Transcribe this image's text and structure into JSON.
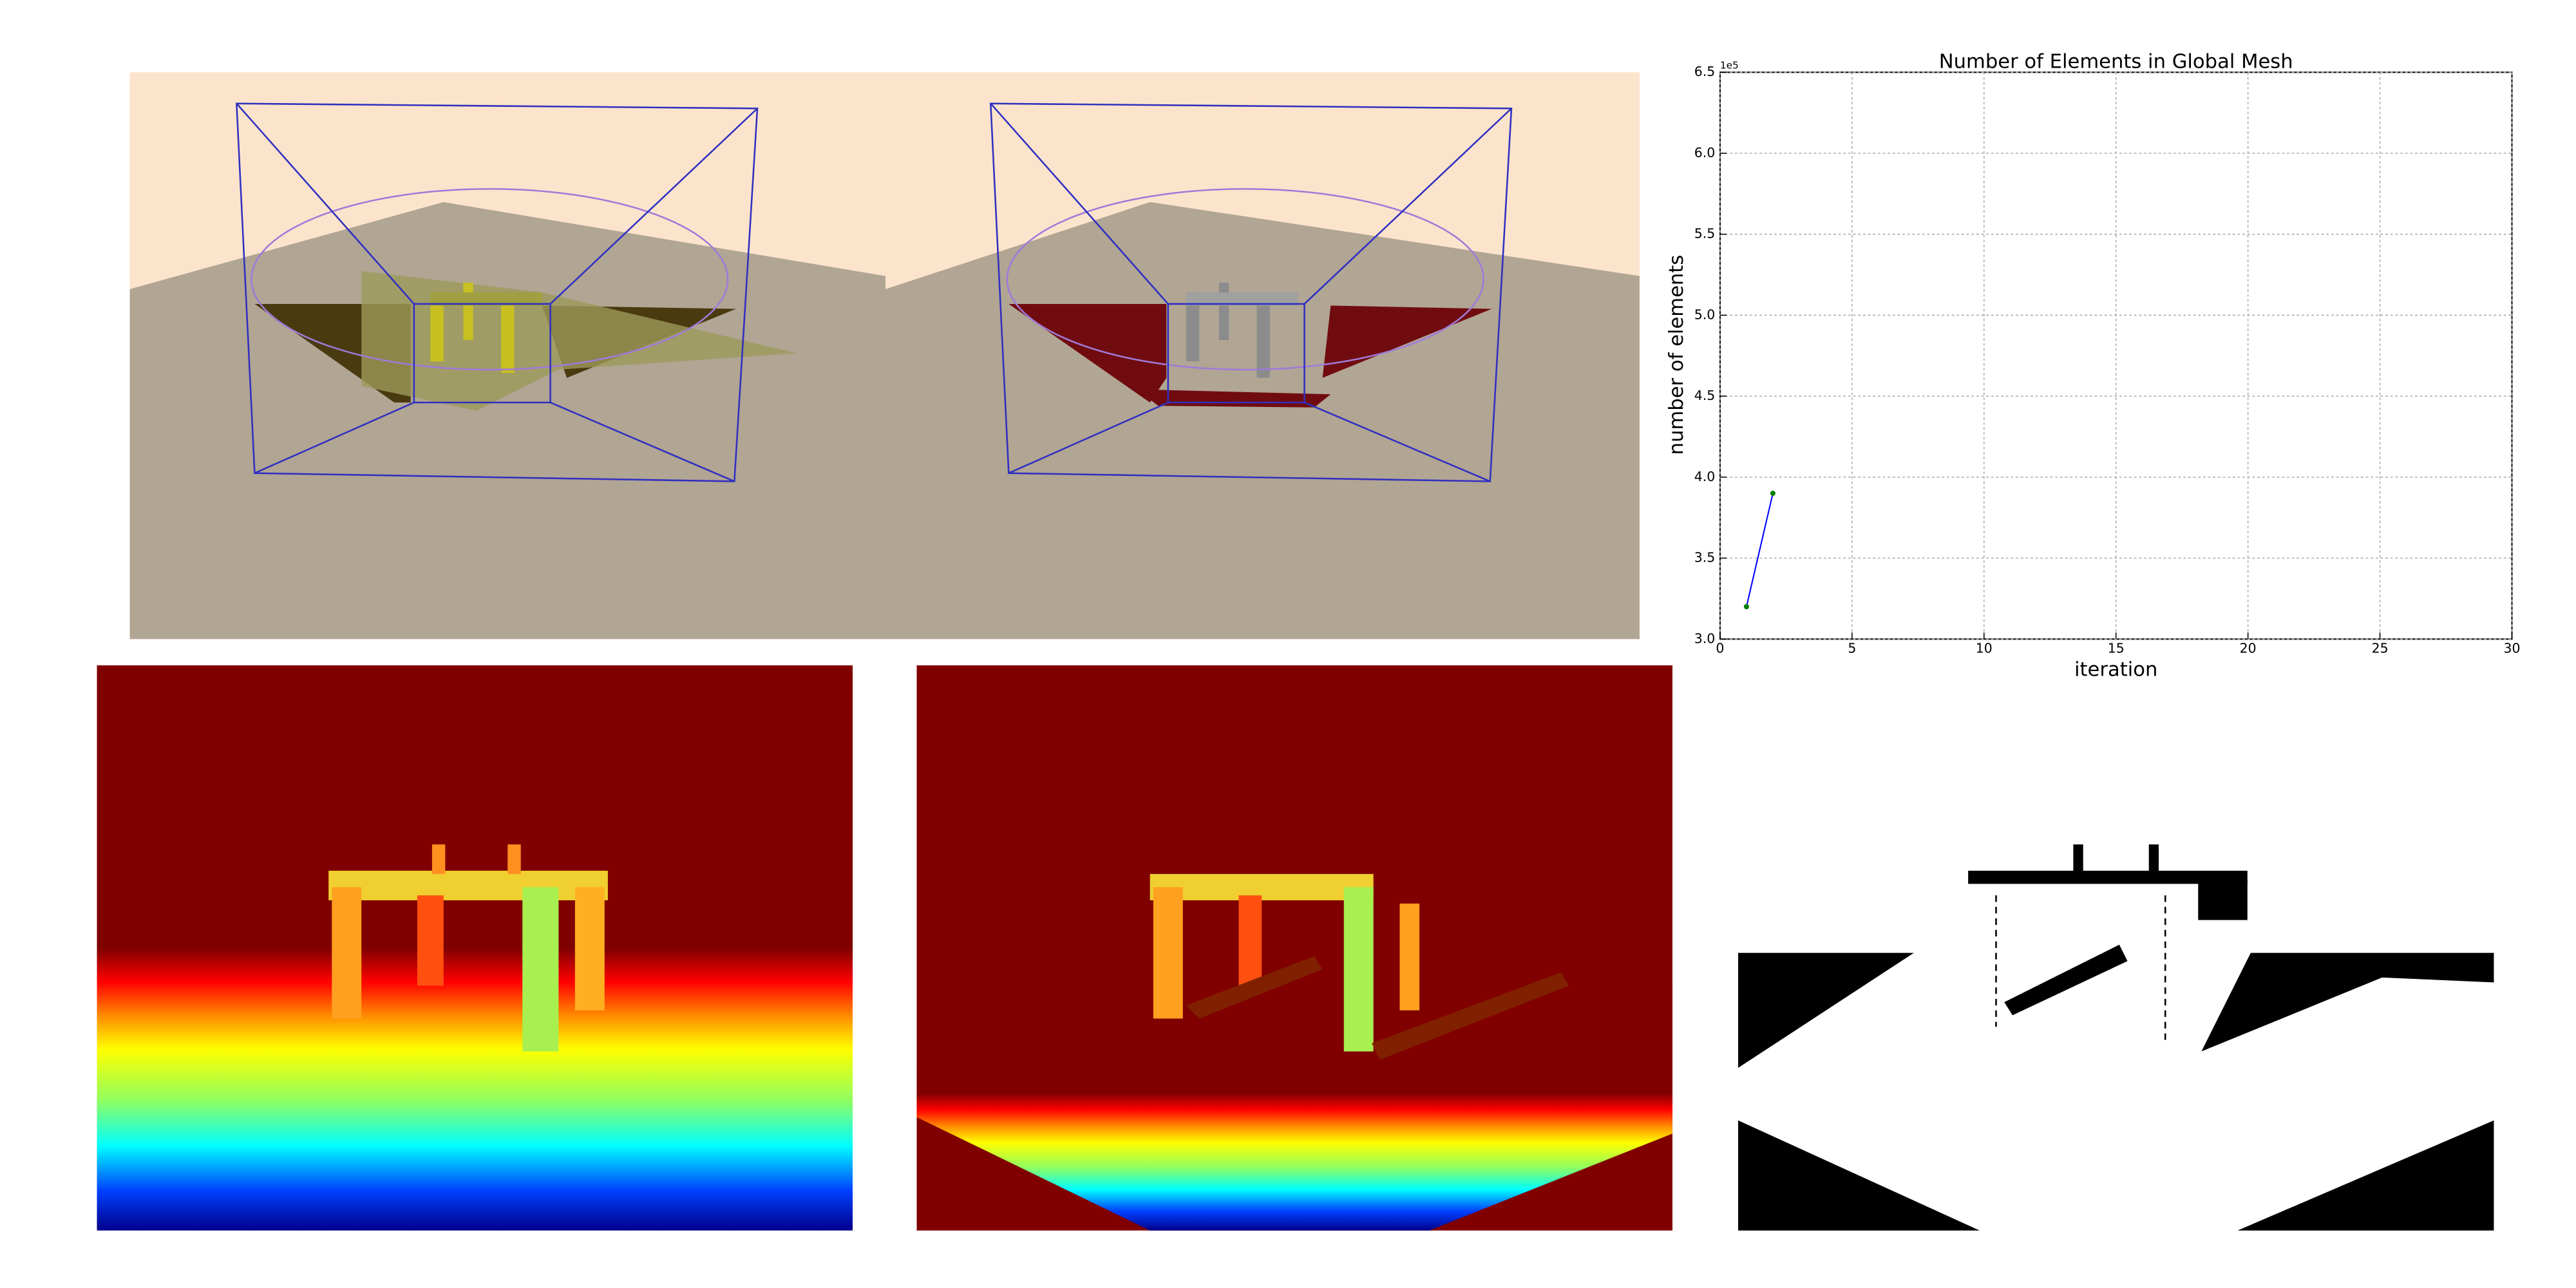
{
  "chart_data": {
    "type": "line",
    "title": "Number of Elements in Global Mesh",
    "x_label": "iteration",
    "y_label": "number of elements",
    "y_offset_label": "1e5",
    "x": [
      1,
      2
    ],
    "series": [
      {
        "color": "#0000ff",
        "marker_color": "#008000",
        "values": [
          3.2,
          3.9
        ]
      }
    ],
    "xlim": [
      0,
      30
    ],
    "ylim": [
      3,
      6.5
    ],
    "xticks": [
      0,
      5,
      10,
      15,
      20,
      25,
      30
    ],
    "yticks": [
      {
        "value": 3,
        "label": "3.0"
      },
      {
        "value": 3.5,
        "label": "3.5"
      },
      {
        "value": 4,
        "label": "4.0"
      },
      {
        "value": 4.5,
        "label": "4.5"
      },
      {
        "value": 5,
        "label": "5.0"
      },
      {
        "value": 5.5,
        "label": "5.5"
      },
      {
        "value": 6,
        "label": "6.0"
      },
      {
        "value": 6.5,
        "label": "6.5"
      }
    ],
    "grid": true
  }
}
